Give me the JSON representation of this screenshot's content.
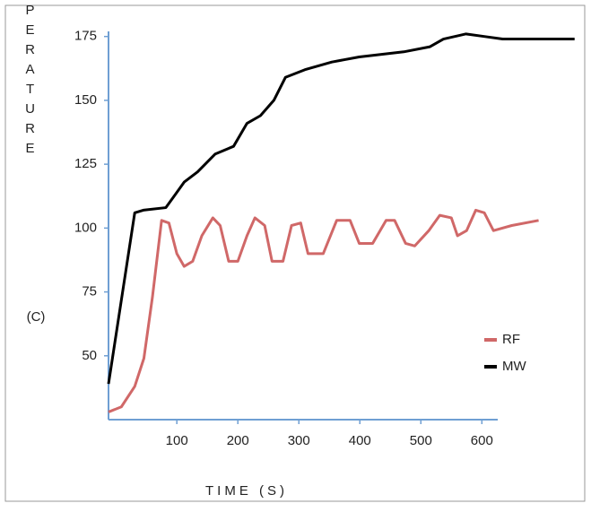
{
  "chart_data": {
    "type": "line",
    "y_label": "TEMPERATURE",
    "y_unit": "(C)",
    "x_label": "TIME (S)",
    "xlim": [
      -12,
      626
    ],
    "xticks": [
      100,
      200,
      300,
      400,
      500,
      600
    ],
    "ylim": [
      25,
      177
    ],
    "yticks": [
      50,
      75,
      100,
      125,
      150,
      175
    ],
    "legend": "lower right",
    "series": [
      {
        "name": "RF",
        "color": "#d06868",
        "x": [
          -12,
          9,
          31,
          46,
          60,
          75,
          87,
          100,
          112,
          126,
          141,
          159,
          171,
          185,
          200,
          215,
          228,
          244,
          256,
          274,
          288,
          303,
          315,
          340,
          362,
          384,
          399,
          421,
          443,
          457,
          475,
          490,
          513,
          531,
          550,
          560,
          575,
          590,
          604,
          619,
          649,
          693
        ],
        "values": [
          28,
          30,
          38,
          49,
          73,
          103,
          102,
          90,
          85,
          87,
          97,
          104,
          101,
          87,
          87,
          97,
          104,
          101,
          87,
          87,
          101,
          102,
          90,
          90,
          103,
          103,
          94,
          94,
          103,
          103,
          94,
          93,
          99,
          105,
          104,
          97,
          99,
          107,
          106,
          99,
          101,
          103
        ]
      },
      {
        "name": "MW",
        "color": "#000000",
        "x": [
          -12,
          31,
          45,
          82,
          97,
          112,
          134,
          163,
          193,
          215,
          237,
          259,
          278,
          310,
          354,
          399,
          472,
          515,
          537,
          574,
          604,
          634,
          752
        ],
        "values": [
          39,
          106,
          107,
          108,
          113,
          118,
          122,
          129,
          132,
          141,
          144,
          150,
          159,
          162,
          165,
          167,
          169,
          171,
          174,
          176,
          175,
          174,
          174
        ]
      }
    ]
  }
}
